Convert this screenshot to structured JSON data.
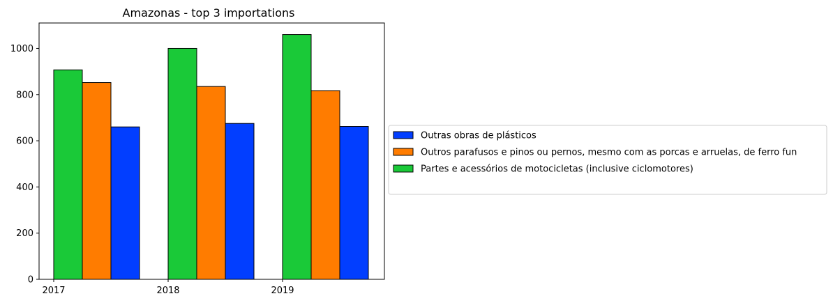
{
  "chart_data": {
    "type": "bar",
    "title": "Amazonas - top 3 importations",
    "xlabel": "",
    "ylabel": "",
    "categories": [
      "2017",
      "2018",
      "2019"
    ],
    "ylim": [
      0,
      1110
    ],
    "yticks": [
      0,
      200,
      400,
      600,
      800,
      1000
    ],
    "grid": false,
    "legend_position": "right-outside",
    "series": [
      {
        "name": "Partes e acessórios de motocicletas (inclusive ciclomotores)",
        "color": "#1ac938",
        "values": [
          907,
          1000,
          1060
        ]
      },
      {
        "name": "Outros parafusos e pinos ou pernos, mesmo com as porcas e arruelas, de ferro fun",
        "color": "#ff7c00",
        "values": [
          852,
          835,
          817
        ]
      },
      {
        "name": "Outras obras de plásticos",
        "color": "#023eff",
        "values": [
          660,
          675,
          662
        ]
      }
    ],
    "legend_order": [
      2,
      1,
      0
    ]
  }
}
